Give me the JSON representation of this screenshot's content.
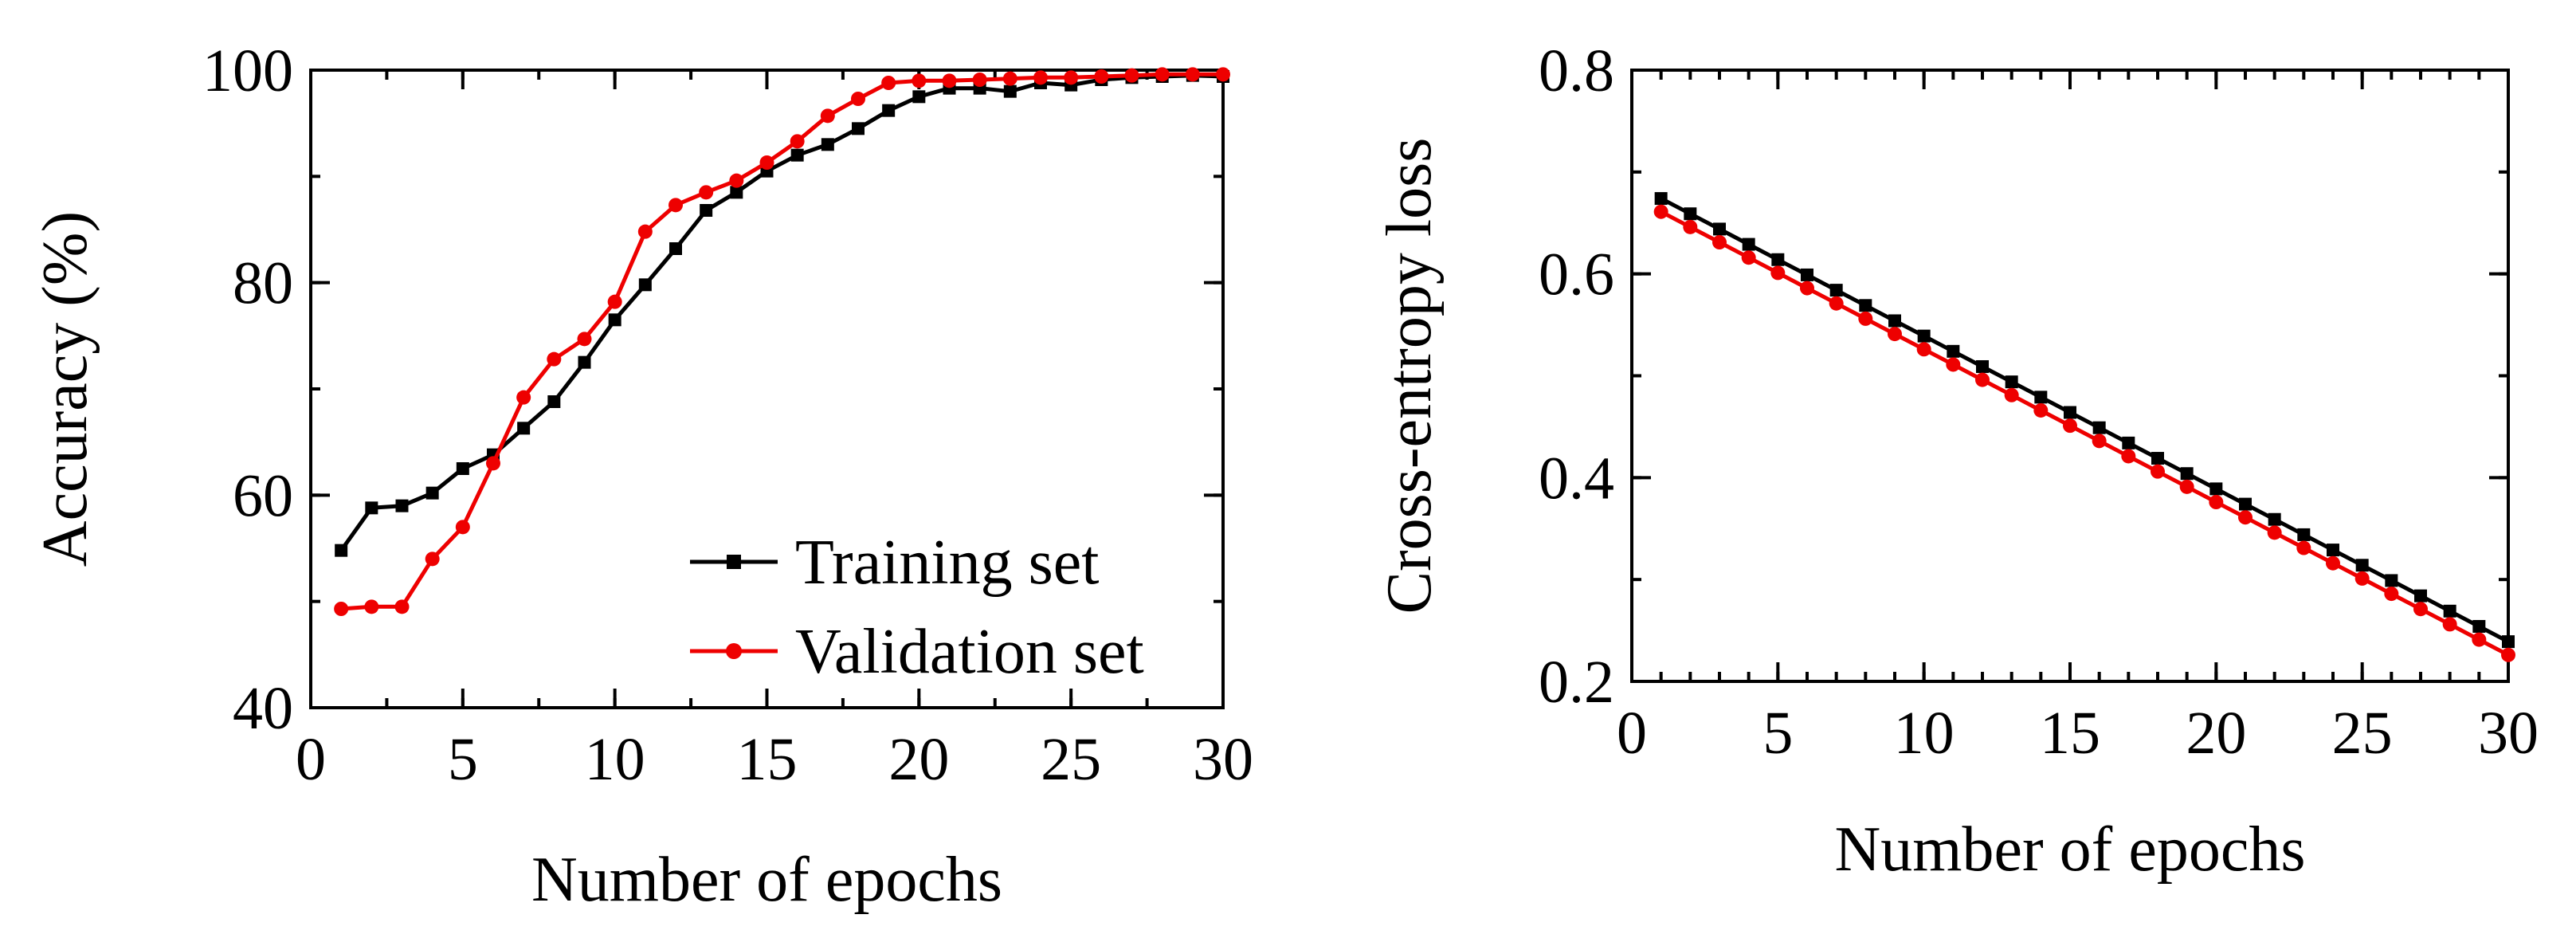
{
  "chart_data": [
    {
      "type": "line",
      "panel": "left",
      "title": "",
      "xlabel": "Number of epochs",
      "ylabel": "Accuracy (%)",
      "xlim": [
        0,
        30
      ],
      "ylim": [
        40,
        100
      ],
      "xticks": [
        0,
        5,
        10,
        15,
        20,
        25,
        30
      ],
      "yticks": [
        40,
        60,
        80,
        100
      ],
      "x": [
        1,
        2,
        3,
        4,
        5,
        6,
        7,
        8,
        9,
        10,
        11,
        12,
        13,
        14,
        15,
        16,
        17,
        18,
        19,
        20,
        21,
        22,
        23,
        24,
        25,
        26,
        27,
        28,
        29,
        30
      ],
      "series": [
        {
          "name": "Training set",
          "color": "#000000",
          "marker": "square",
          "values": [
            54.8,
            58.8,
            59.0,
            60.2,
            62.5,
            63.8,
            66.3,
            68.8,
            72.5,
            76.5,
            79.8,
            83.2,
            86.8,
            88.5,
            90.5,
            92.0,
            93.0,
            94.5,
            96.2,
            97.5,
            98.3,
            98.3,
            98.0,
            98.8,
            98.6,
            99.1,
            99.3,
            99.4,
            99.5,
            99.4
          ],
          "legend_label": "Training set"
        },
        {
          "name": "Validation set",
          "color": "#ee0000",
          "marker": "circle",
          "values": [
            49.3,
            49.5,
            49.5,
            54.0,
            57.0,
            63.0,
            69.2,
            72.8,
            74.7,
            78.2,
            84.8,
            87.3,
            88.5,
            89.6,
            91.3,
            93.3,
            95.7,
            97.3,
            98.8,
            99.0,
            99.0,
            99.1,
            99.2,
            99.3,
            99.3,
            99.4,
            99.5,
            99.6,
            99.6,
            99.6
          ],
          "legend_label": "Validation set"
        }
      ],
      "legend_position": "bottom-right"
    },
    {
      "type": "line",
      "panel": "right",
      "title": "",
      "xlabel": "Number of epochs",
      "ylabel": "Cross-entropy loss",
      "xlim": [
        0,
        30
      ],
      "ylim": [
        0.2,
        0.8
      ],
      "xticks": [
        0,
        5,
        10,
        15,
        20,
        25,
        30
      ],
      "yticks": [
        0.2,
        0.4,
        0.6,
        0.8
      ],
      "x": [
        1,
        2,
        3,
        4,
        5,
        6,
        7,
        8,
        9,
        10,
        11,
        12,
        13,
        14,
        15,
        16,
        17,
        18,
        19,
        20,
        21,
        22,
        23,
        24,
        25,
        26,
        27,
        28,
        29,
        30
      ],
      "series": [
        {
          "name": "Training set",
          "color": "#000000",
          "marker": "square",
          "values": [
            0.674,
            0.659,
            0.644,
            0.629,
            0.614,
            0.599,
            0.584,
            0.569,
            0.554,
            0.539,
            0.524,
            0.509,
            0.494,
            0.479,
            0.464,
            0.449,
            0.434,
            0.419,
            0.404,
            0.389,
            0.374,
            0.359,
            0.344,
            0.329,
            0.314,
            0.299,
            0.284,
            0.269,
            0.254,
            0.239
          ]
        },
        {
          "name": "Validation set",
          "color": "#ee0000",
          "marker": "circle",
          "values": [
            0.661,
            0.646,
            0.631,
            0.616,
            0.601,
            0.586,
            0.571,
            0.556,
            0.541,
            0.526,
            0.511,
            0.496,
            0.481,
            0.466,
            0.451,
            0.436,
            0.421,
            0.406,
            0.391,
            0.376,
            0.361,
            0.346,
            0.331,
            0.316,
            0.301,
            0.286,
            0.271,
            0.256,
            0.241,
            0.226
          ]
        }
      ]
    }
  ]
}
